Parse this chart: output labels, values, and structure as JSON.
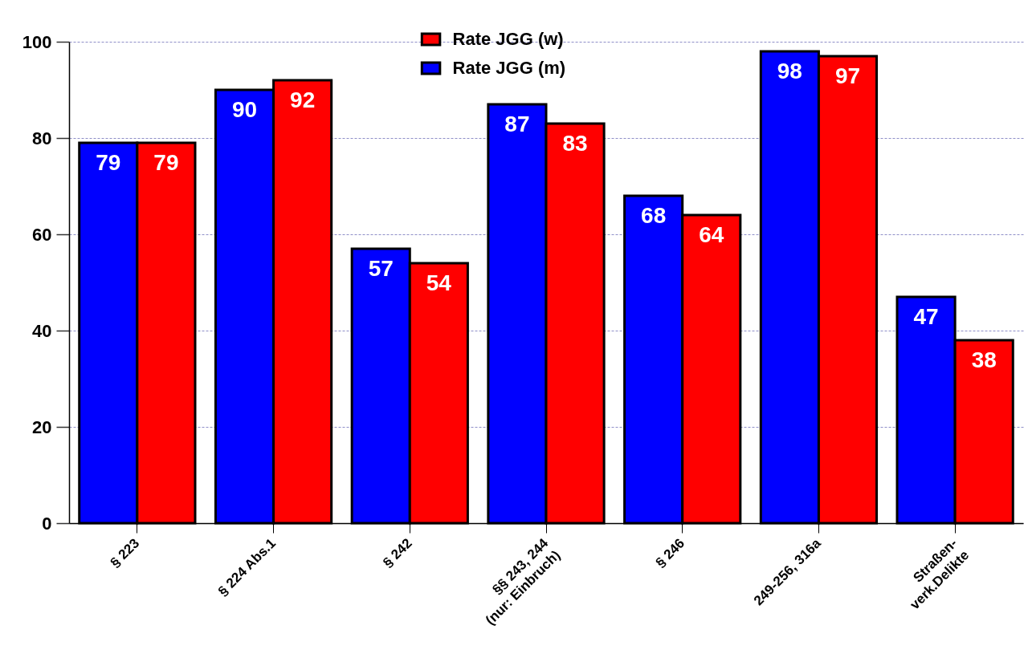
{
  "chart_data": {
    "type": "bar",
    "categories": [
      "§ 223",
      "§ 224 Abs.1",
      "§ 242",
      "§§ 243, 244\n(nur: Einbruch)",
      "§ 246",
      "249-256, 316a",
      "Straßen-\nverk.Delikte"
    ],
    "series": [
      {
        "name": "Rate JGG (m)",
        "color": "#0000ff",
        "values": [
          79,
          90,
          57,
          87,
          68,
          98,
          47
        ]
      },
      {
        "name": "Rate JGG (w)",
        "color": "#ff0000",
        "values": [
          79,
          92,
          54,
          83,
          64,
          97,
          38
        ]
      }
    ],
    "ylim": [
      0,
      100
    ],
    "yticks": [
      0,
      20,
      40,
      60,
      80,
      100
    ],
    "grid": "y",
    "legend": "top",
    "data_labels": true
  }
}
